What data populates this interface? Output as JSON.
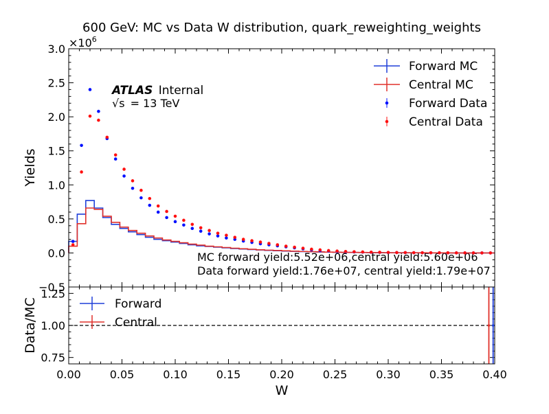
{
  "chart_data": [
    {
      "type": "line",
      "title": "600 GeV: MC vs Data W distribution, quark_reweighting_weights",
      "ylabel": "Yields",
      "y_multiplier": "×10",
      "y_exponent": "6",
      "xlim": [
        0.0,
        0.4
      ],
      "ylim": [
        -0.5,
        3.0
      ],
      "yticks": [
        "−0.5",
        "0.0",
        "0.5",
        "1.0",
        "1.5",
        "2.0",
        "2.5",
        "3.0"
      ],
      "brand": {
        "atlas": "ATLAS",
        "internal": "Internal",
        "energy_sqrt": "√s",
        "energy_rest": "= 13 TeV"
      },
      "annotations": [
        "MC forward yield:5.52e+06,central yield:5.60e+06",
        "Data forward yield:1.76e+07, central yield:1.79e+07"
      ],
      "legend": {
        "placement": "top-right",
        "entries": [
          "Forward MC",
          "Central MC",
          "Forward Data",
          "Central Data"
        ]
      },
      "bin_width": 0.008,
      "series": [
        {
          "name": "Forward MC",
          "style": "step",
          "color": "#1f3fd9",
          "values": [
            0.17,
            0.57,
            0.77,
            0.66,
            0.52,
            0.42,
            0.36,
            0.31,
            0.27,
            0.23,
            0.2,
            0.18,
            0.16,
            0.14,
            0.12,
            0.105,
            0.095,
            0.085,
            0.075,
            0.065,
            0.058,
            0.05,
            0.044,
            0.038,
            0.033,
            0.028,
            0.024,
            0.02,
            0.017,
            0.014,
            0.012,
            0.01,
            0.008,
            0.007,
            0.006,
            0.005,
            0.004,
            0.003,
            0.003,
            0.002,
            0.002,
            0.001,
            0.001,
            0.001,
            0.0,
            0.0,
            0.0,
            0.0,
            0.0,
            0.0
          ]
        },
        {
          "name": "Central MC",
          "style": "step",
          "color": "#e0302a",
          "values": [
            0.1,
            0.43,
            0.66,
            0.64,
            0.54,
            0.45,
            0.38,
            0.33,
            0.29,
            0.25,
            0.22,
            0.19,
            0.17,
            0.15,
            0.13,
            0.115,
            0.1,
            0.09,
            0.08,
            0.07,
            0.062,
            0.054,
            0.047,
            0.041,
            0.036,
            0.031,
            0.026,
            0.022,
            0.019,
            0.016,
            0.013,
            0.011,
            0.009,
            0.008,
            0.007,
            0.006,
            0.005,
            0.004,
            0.003,
            0.003,
            0.002,
            0.002,
            0.001,
            0.001,
            0.001,
            0.0,
            0.0,
            0.0,
            0.0,
            0.0
          ]
        },
        {
          "name": "Forward Data",
          "style": "points",
          "color": "#0010ff",
          "values": [
            0.17,
            1.58,
            2.4,
            2.08,
            1.68,
            1.38,
            1.13,
            0.95,
            0.81,
            0.7,
            0.6,
            0.52,
            0.46,
            0.41,
            0.36,
            0.32,
            0.28,
            0.25,
            0.22,
            0.2,
            0.175,
            0.155,
            0.135,
            0.12,
            0.105,
            0.09,
            0.075,
            0.06,
            0.045,
            0.035,
            0.028,
            0.022,
            0.018,
            0.015,
            0.012,
            0.01,
            0.008,
            0.006,
            0.005,
            0.004,
            0.003,
            0.003,
            0.002,
            0.002,
            0.001,
            0.001,
            0.001,
            0.0,
            0.0,
            0.0
          ]
        },
        {
          "name": "Central Data",
          "style": "points",
          "color": "#ff1010",
          "values": [
            0.12,
            1.19,
            2.01,
            1.95,
            1.7,
            1.44,
            1.23,
            1.06,
            0.92,
            0.8,
            0.69,
            0.61,
            0.54,
            0.48,
            0.42,
            0.37,
            0.33,
            0.29,
            0.26,
            0.23,
            0.2,
            0.18,
            0.16,
            0.14,
            0.12,
            0.1,
            0.085,
            0.07,
            0.055,
            0.045,
            0.035,
            0.028,
            0.022,
            0.018,
            0.015,
            0.012,
            0.01,
            0.008,
            0.006,
            0.005,
            0.004,
            0.003,
            0.003,
            0.002,
            0.002,
            0.001,
            0.001,
            0.001,
            0.0,
            0.0
          ]
        }
      ]
    },
    {
      "type": "line",
      "xlabel": "W",
      "ylabel": "Data/MC",
      "xlim": [
        0.0,
        0.4
      ],
      "ylim": [
        0.7,
        1.3
      ],
      "xticks": [
        "0.00",
        "0.05",
        "0.10",
        "0.15",
        "0.20",
        "0.25",
        "0.30",
        "0.35",
        "0.40"
      ],
      "yticks": [
        "0.75",
        "1.00",
        "1.25"
      ],
      "reference_line": 1.0,
      "legend": {
        "placement": "top-left",
        "entries": [
          "Forward",
          "Central"
        ]
      },
      "series": [
        {
          "name": "Forward",
          "color": "#1f3fd9",
          "x": [
            0.3985
          ],
          "y": [
            1.0
          ]
        },
        {
          "name": "Central",
          "color": "#e0302a",
          "x": [
            0.3945
          ],
          "y": [
            1.0
          ]
        }
      ]
    }
  ]
}
